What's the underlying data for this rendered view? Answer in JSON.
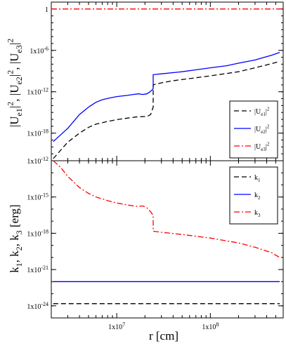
{
  "chart_data": [
    {
      "type": "line",
      "ylabel": "|U_e1|^2, |U_e2|^2, |U_e3|^2",
      "xscale": "log",
      "yscale": "log",
      "xlim": [
        2000000,
        600000000
      ],
      "ylim": [
        1e-22,
        10
      ],
      "ytick_labels": [
        "1",
        "1x10^-6",
        "1x10^-12",
        "1x10^-18"
      ],
      "legend": "bottom-right",
      "series": [
        {
          "name": "|U_e1|^2",
          "color": "#000000",
          "style": "dashed",
          "x": [
            2100000,
            3000000,
            4000000,
            5000000,
            6000000,
            8000000,
            10000000,
            13000000,
            16000000,
            19000000,
            21000000,
            23000000,
            24500000,
            24500000,
            30000000,
            40000000,
            60000000,
            100000000,
            200000000,
            300000000,
            450000000,
            550000000
          ],
          "y": [
            2e-22,
            5e-20,
            1e-18,
            7e-18,
            2e-17,
            5e-17,
            9e-17,
            1.5e-16,
            2.2e-16,
            2.5e-16,
            2.5e-16,
            5e-16,
            6e-15,
            1e-11,
            2e-11,
            4e-11,
            8e-11,
            2e-10,
            8e-10,
            3e-09,
            1.2e-08,
            2.5e-08
          ]
        },
        {
          "name": "|U_e2|^2",
          "color": "#0000ff",
          "style": "solid",
          "x": [
            2100000,
            3000000,
            4000000,
            5000000,
            6000000,
            7000000,
            8000000,
            10000000,
            13000000,
            15000000,
            17000000,
            19000000,
            21000000,
            22500000,
            24000000,
            24500000,
            24500000,
            30000000,
            50000000,
            70000000,
            100000000,
            150000000,
            200000000,
            300000000,
            450000000,
            550000000
          ],
          "y": [
            6e-20,
            5e-18,
            5e-16,
            6e-15,
            3e-14,
            7e-14,
            1.1e-13,
            2e-13,
            3e-13,
            4e-13,
            5e-13,
            4e-13,
            5e-13,
            9e-13,
            2e-12,
            3e-12,
            3e-10,
            4e-10,
            8e-10,
            1.5e-09,
            3e-09,
            6e-09,
            1.4e-08,
            4e-08,
            2e-07,
            5e-07
          ]
        },
        {
          "name": "|U_e3|^2",
          "color": "#ff0000",
          "style": "dash-dot",
          "x": [
            2000000,
            600000000
          ],
          "y": [
            1,
            1
          ]
        }
      ]
    },
    {
      "type": "line",
      "xlabel": "r [cm]",
      "ylabel": "k_1, k_2, k_3 [erg]",
      "xscale": "log",
      "yscale": "log",
      "xlim": [
        2000000,
        600000000
      ],
      "ylim": [
        1e-25,
        1e-12
      ],
      "ytick_labels": [
        "1x10^-12",
        "1x10^-15",
        "1x10^-18",
        "1x10^-21",
        "1x10^-24"
      ],
      "xtick_labels": [
        "1x10^7",
        "1x10^8"
      ],
      "legend": "top-right",
      "series": [
        {
          "name": "k_1",
          "color": "#000000",
          "style": "dashed",
          "x": [
            2100000,
            550000000
          ],
          "y": [
            1.5e-24,
            1.5e-24
          ]
        },
        {
          "name": "k_2",
          "color": "#0000ff",
          "style": "solid",
          "x": [
            2100000,
            550000000
          ],
          "y": [
            1e-22,
            1e-22
          ]
        },
        {
          "name": "k_3",
          "color": "#ff0000",
          "style": "dash-dot",
          "x": [
            2100000,
            2500000,
            3000000,
            4000000,
            5000000,
            6000000,
            8000000,
            10000000,
            13000000,
            16000000,
            19000000,
            21000000,
            23000000,
            24500000,
            24500000,
            30000000,
            50000000,
            100000000,
            200000000,
            300000000,
            450000000,
            550000000
          ],
          "y": [
            1e-12,
            3e-13,
            5e-14,
            6e-15,
            2e-15,
            1e-15,
            5e-16,
            3.2e-16,
            2.2e-16,
            1.7e-16,
            1.8e-16,
            1.3e-16,
            6e-17,
            3e-17,
            1.5e-18,
            1.2e-18,
            8e-19,
            4e-19,
            1.6e-19,
            7e-20,
            2.5e-20,
            1e-20
          ]
        }
      ]
    }
  ]
}
